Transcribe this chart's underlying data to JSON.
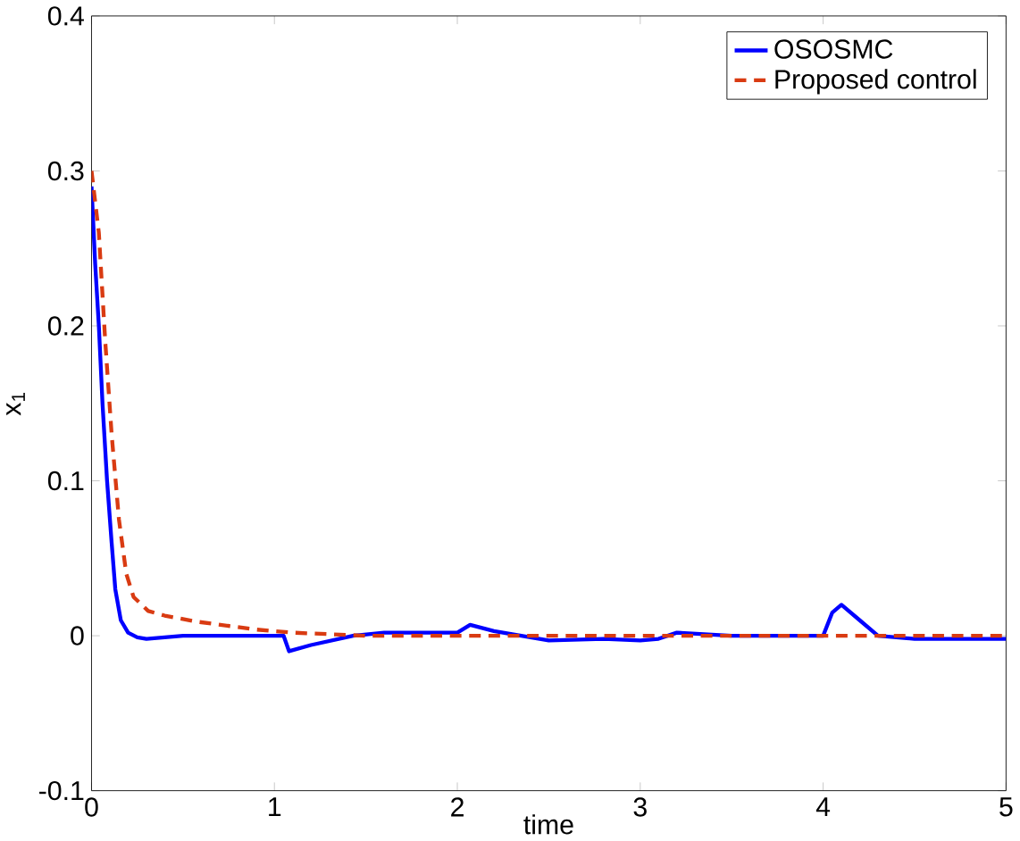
{
  "chart_data": {
    "type": "line",
    "xlabel": "time",
    "ylabel": "x$_{1}$",
    "xlim": [
      0,
      5
    ],
    "ylim": [
      -0.1,
      0.4
    ],
    "xticks": [
      0,
      1,
      2,
      3,
      4,
      5
    ],
    "yticks": [
      -0.1,
      0,
      0.1,
      0.2,
      0.3,
      0.4
    ],
    "legend": "top right",
    "series": [
      {
        "name": "OSOSMC",
        "color": "#0000ff",
        "line_style": "solid",
        "x": [
          0,
          0.02,
          0.04,
          0.06,
          0.085,
          0.11,
          0.13,
          0.16,
          0.2,
          0.25,
          0.3,
          0.5,
          1.0,
          1.05,
          1.08,
          1.2,
          1.43,
          1.6,
          2.0,
          2.07,
          2.2,
          2.5,
          2.8,
          3.0,
          3.1,
          3.2,
          3.5,
          4.0,
          4.05,
          4.1,
          4.2,
          4.3,
          4.5,
          5.0
        ],
        "values": [
          0.29,
          0.24,
          0.2,
          0.15,
          0.1,
          0.06,
          0.03,
          0.01,
          0.002,
          -0.001,
          -0.002,
          0,
          0,
          0,
          -0.01,
          -0.006,
          0,
          0.002,
          0.002,
          0.007,
          0.003,
          -0.003,
          -0.002,
          -0.003,
          -0.002,
          0.002,
          0,
          0,
          0.015,
          0.02,
          0.01,
          0,
          -0.002,
          -0.002
        ]
      },
      {
        "name": "Proposed control",
        "color": "#d93b12",
        "line_style": "dashed",
        "x": [
          0,
          0.04,
          0.075,
          0.11,
          0.15,
          0.19,
          0.23,
          0.31,
          0.4,
          0.58,
          0.9,
          1.1,
          1.5,
          2.0,
          5.0
        ],
        "values": [
          0.3,
          0.26,
          0.19,
          0.13,
          0.075,
          0.04,
          0.025,
          0.016,
          0.013,
          0.009,
          0.004,
          0.002,
          0.0,
          0,
          0
        ]
      }
    ]
  }
}
